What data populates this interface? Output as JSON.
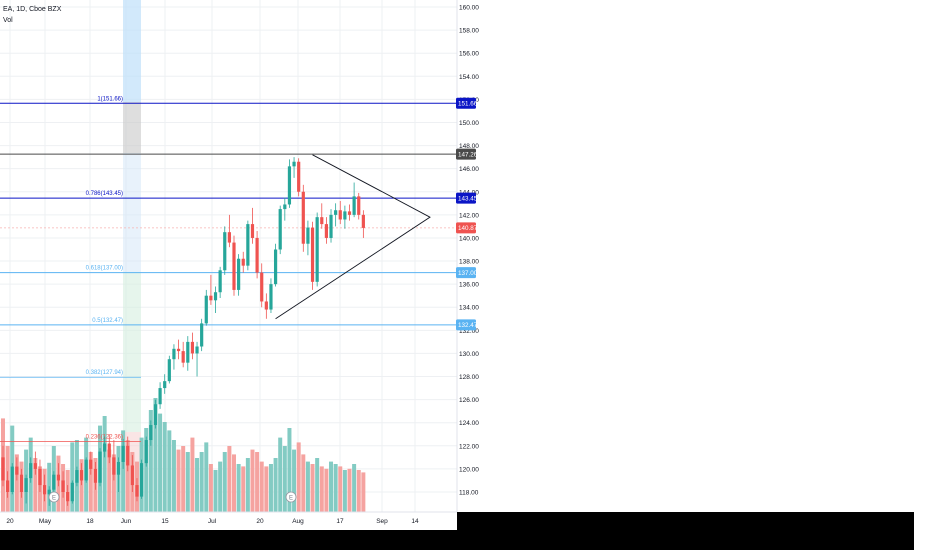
{
  "header": {
    "symbol": "EA, 1D, Cboe BZX",
    "volume_label": "Vol"
  },
  "colors": {
    "up": "#26a69a",
    "down": "#ef5350",
    "vol_up": "#83cbc3",
    "vol_down": "#f5a3a0",
    "fib_blue": "#0b15c6",
    "fib_light": "#5ab3f2",
    "gray_level": "#4a4a4a",
    "grid": "#eef0f3"
  },
  "chart_data": {
    "type": "candlestick",
    "title": "EA, 1D, Cboe BZX",
    "ylim": [
      116.5,
      160.5
    ],
    "y_ticks": [
      "160.00",
      "158.00",
      "156.00",
      "154.00",
      "152.00",
      "150.00",
      "148.00",
      "146.00",
      "144.00",
      "142.00",
      "140.00",
      "138.00",
      "136.00",
      "134.00",
      "132.00",
      "130.00",
      "128.00",
      "126.00",
      "124.00",
      "122.00",
      "120.00",
      "118.00"
    ],
    "x_labels": [
      "20",
      "May",
      "18",
      "Jun",
      "15",
      "Jul",
      "20",
      "Aug",
      "17",
      "Sep",
      "14"
    ],
    "current_price": "140.87",
    "price_labels": [
      "151.66",
      "147.26",
      "143.45",
      "140.87",
      "137.00",
      "132.47"
    ],
    "fib_levels": [
      {
        "label": "1(151.66)",
        "value": 151.66,
        "color": "#0b15c6",
        "tag": "151.66"
      },
      {
        "label": "0.786(143.45)",
        "value": 143.45,
        "color": "#0b15c6",
        "tag": "143.45"
      },
      {
        "label": "0.618(137.00)",
        "value": 137.0,
        "color": "#5ab3f2",
        "tag": "137.00"
      },
      {
        "label": "0.5(132.47)",
        "value": 132.47,
        "color": "#5ab3f2",
        "tag": "132.47"
      },
      {
        "label": "0.382(127.94)",
        "value": 127.94,
        "color": "#5ab3f2",
        "tag": ""
      },
      {
        "label": "0.236(122.36)",
        "value": 122.36,
        "color": "#ef5350",
        "tag": ""
      }
    ],
    "resistance": 147.26,
    "candles": [
      {
        "o": 121.0,
        "h": 122.0,
        "l": 118.5,
        "c": 119.0
      },
      {
        "o": 119.0,
        "h": 119.8,
        "l": 117.5,
        "c": 118.0
      },
      {
        "o": 118.0,
        "h": 120.5,
        "l": 117.8,
        "c": 120.2
      },
      {
        "o": 120.2,
        "h": 121.0,
        "l": 119.0,
        "c": 119.5
      },
      {
        "o": 119.5,
        "h": 120.0,
        "l": 117.5,
        "c": 118.0
      },
      {
        "o": 118.0,
        "h": 119.5,
        "l": 117.0,
        "c": 119.2
      },
      {
        "o": 119.2,
        "h": 121.0,
        "l": 118.8,
        "c": 120.5
      },
      {
        "o": 120.5,
        "h": 121.5,
        "l": 119.5,
        "c": 120.0
      },
      {
        "o": 120.0,
        "h": 120.8,
        "l": 118.0,
        "c": 118.6
      },
      {
        "o": 118.6,
        "h": 119.5,
        "l": 117.2,
        "c": 117.8
      },
      {
        "o": 117.8,
        "h": 118.5,
        "l": 116.8,
        "c": 118.2
      },
      {
        "o": 118.2,
        "h": 119.8,
        "l": 118.0,
        "c": 119.5
      },
      {
        "o": 119.5,
        "h": 120.5,
        "l": 118.5,
        "c": 119.0
      },
      {
        "o": 119.0,
        "h": 119.8,
        "l": 117.5,
        "c": 118.0
      },
      {
        "o": 118.0,
        "h": 118.6,
        "l": 116.8,
        "c": 117.2
      },
      {
        "o": 117.2,
        "h": 119.0,
        "l": 117.0,
        "c": 118.8
      },
      {
        "o": 118.8,
        "h": 120.2,
        "l": 118.5,
        "c": 119.9
      },
      {
        "o": 119.9,
        "h": 120.5,
        "l": 118.6,
        "c": 119.0
      },
      {
        "o": 119.0,
        "h": 121.0,
        "l": 118.8,
        "c": 120.8
      },
      {
        "o": 120.8,
        "h": 121.5,
        "l": 119.5,
        "c": 120.0
      },
      {
        "o": 120.0,
        "h": 120.6,
        "l": 118.2,
        "c": 118.8
      },
      {
        "o": 118.8,
        "h": 121.8,
        "l": 118.5,
        "c": 121.5
      },
      {
        "o": 121.5,
        "h": 122.8,
        "l": 121.0,
        "c": 122.2
      },
      {
        "o": 122.2,
        "h": 123.0,
        "l": 120.5,
        "c": 121.0
      },
      {
        "o": 121.0,
        "h": 122.5,
        "l": 119.0,
        "c": 119.5
      },
      {
        "o": 119.5,
        "h": 121.0,
        "l": 118.0,
        "c": 120.6
      },
      {
        "o": 120.6,
        "h": 122.6,
        "l": 120.0,
        "c": 122.0
      },
      {
        "o": 122.0,
        "h": 122.8,
        "l": 119.8,
        "c": 120.3
      },
      {
        "o": 120.3,
        "h": 121.2,
        "l": 118.0,
        "c": 118.6
      },
      {
        "o": 118.6,
        "h": 119.2,
        "l": 117.2,
        "c": 117.6
      },
      {
        "o": 117.6,
        "h": 120.8,
        "l": 117.4,
        "c": 120.5
      },
      {
        "o": 120.5,
        "h": 122.8,
        "l": 120.2,
        "c": 122.5
      },
      {
        "o": 122.5,
        "h": 124.2,
        "l": 122.0,
        "c": 123.8
      },
      {
        "o": 123.8,
        "h": 126.0,
        "l": 123.5,
        "c": 125.6
      },
      {
        "o": 125.6,
        "h": 127.5,
        "l": 125.2,
        "c": 127.0
      },
      {
        "o": 127.0,
        "h": 128.2,
        "l": 126.5,
        "c": 127.6
      },
      {
        "o": 127.6,
        "h": 129.8,
        "l": 127.4,
        "c": 129.5
      },
      {
        "o": 129.5,
        "h": 130.8,
        "l": 128.6,
        "c": 130.4
      },
      {
        "o": 130.4,
        "h": 131.2,
        "l": 129.5,
        "c": 130.2
      },
      {
        "o": 130.2,
        "h": 131.0,
        "l": 128.8,
        "c": 129.2
      },
      {
        "o": 129.2,
        "h": 131.5,
        "l": 128.5,
        "c": 131.0
      },
      {
        "o": 131.0,
        "h": 131.8,
        "l": 129.5,
        "c": 130.0
      },
      {
        "o": 130.0,
        "h": 131.0,
        "l": 128.0,
        "c": 130.6
      },
      {
        "o": 130.6,
        "h": 133.0,
        "l": 130.2,
        "c": 132.6
      },
      {
        "o": 132.6,
        "h": 135.5,
        "l": 132.4,
        "c": 135.0
      },
      {
        "o": 135.0,
        "h": 136.8,
        "l": 134.2,
        "c": 134.6
      },
      {
        "o": 134.6,
        "h": 135.8,
        "l": 133.5,
        "c": 135.3
      },
      {
        "o": 135.3,
        "h": 137.5,
        "l": 134.8,
        "c": 137.2
      },
      {
        "o": 137.2,
        "h": 141.0,
        "l": 136.8,
        "c": 140.5
      },
      {
        "o": 140.5,
        "h": 142.0,
        "l": 139.2,
        "c": 139.6
      },
      {
        "o": 139.6,
        "h": 140.2,
        "l": 135.0,
        "c": 135.5
      },
      {
        "o": 135.5,
        "h": 138.6,
        "l": 135.0,
        "c": 138.2
      },
      {
        "o": 138.2,
        "h": 138.8,
        "l": 137.0,
        "c": 137.6
      },
      {
        "o": 137.6,
        "h": 141.5,
        "l": 137.2,
        "c": 141.2
      },
      {
        "o": 141.2,
        "h": 142.6,
        "l": 139.5,
        "c": 140.0
      },
      {
        "o": 140.0,
        "h": 140.6,
        "l": 136.5,
        "c": 137.0
      },
      {
        "o": 137.0,
        "h": 137.8,
        "l": 134.0,
        "c": 134.5
      },
      {
        "o": 134.5,
        "h": 135.2,
        "l": 133.0,
        "c": 133.8
      },
      {
        "o": 133.8,
        "h": 136.5,
        "l": 133.5,
        "c": 136.0
      },
      {
        "o": 136.0,
        "h": 139.5,
        "l": 135.8,
        "c": 139.0
      },
      {
        "o": 139.0,
        "h": 142.8,
        "l": 138.6,
        "c": 142.5
      },
      {
        "o": 142.5,
        "h": 143.5,
        "l": 141.5,
        "c": 142.9
      },
      {
        "o": 142.9,
        "h": 146.8,
        "l": 142.6,
        "c": 146.2
      },
      {
        "o": 146.2,
        "h": 147.0,
        "l": 145.2,
        "c": 146.6
      },
      {
        "o": 146.6,
        "h": 146.9,
        "l": 143.6,
        "c": 144.0
      },
      {
        "o": 144.0,
        "h": 144.6,
        "l": 138.8,
        "c": 139.5
      },
      {
        "o": 139.5,
        "h": 141.5,
        "l": 138.5,
        "c": 140.9
      },
      {
        "o": 140.9,
        "h": 141.4,
        "l": 135.5,
        "c": 136.2
      },
      {
        "o": 136.2,
        "h": 142.2,
        "l": 135.8,
        "c": 141.8
      },
      {
        "o": 141.8,
        "h": 143.0,
        "l": 140.8,
        "c": 141.2
      },
      {
        "o": 141.2,
        "h": 141.8,
        "l": 139.5,
        "c": 140.0
      },
      {
        "o": 140.0,
        "h": 142.5,
        "l": 139.6,
        "c": 142.0
      },
      {
        "o": 142.0,
        "h": 143.0,
        "l": 141.0,
        "c": 142.4
      },
      {
        "o": 142.4,
        "h": 143.2,
        "l": 141.2,
        "c": 141.6
      },
      {
        "o": 141.6,
        "h": 142.8,
        "l": 140.8,
        "c": 142.3
      },
      {
        "o": 142.3,
        "h": 142.9,
        "l": 141.5,
        "c": 142.0
      },
      {
        "o": 142.0,
        "h": 144.8,
        "l": 141.8,
        "c": 143.6
      },
      {
        "o": 143.6,
        "h": 143.9,
        "l": 141.6,
        "c": 142.0
      },
      {
        "o": 142.0,
        "h": 142.4,
        "l": 140.0,
        "c": 140.87
      }
    ],
    "volume": [
      0.78,
      0.55,
      0.72,
      0.48,
      0.42,
      0.52,
      0.62,
      0.45,
      0.38,
      0.36,
      0.41,
      0.55,
      0.47,
      0.4,
      0.35,
      0.58,
      0.6,
      0.44,
      0.62,
      0.5,
      0.45,
      0.72,
      0.8,
      0.52,
      0.48,
      0.55,
      0.68,
      0.6,
      0.5,
      0.42,
      0.62,
      0.7,
      0.85,
      0.95,
      0.82,
      0.75,
      0.68,
      0.6,
      0.52,
      0.55,
      0.5,
      0.62,
      0.45,
      0.5,
      0.58,
      0.4,
      0.35,
      0.42,
      0.5,
      0.55,
      0.48,
      0.4,
      0.38,
      0.45,
      0.52,
      0.5,
      0.42,
      0.38,
      0.4,
      0.45,
      0.62,
      0.55,
      0.7,
      0.52,
      0.58,
      0.48,
      0.42,
      0.4,
      0.45,
      0.38,
      0.36,
      0.42,
      0.4,
      0.38,
      0.35,
      0.36,
      0.4,
      0.35,
      0.33
    ],
    "earnings_markers": [
      "E",
      "E"
    ]
  }
}
